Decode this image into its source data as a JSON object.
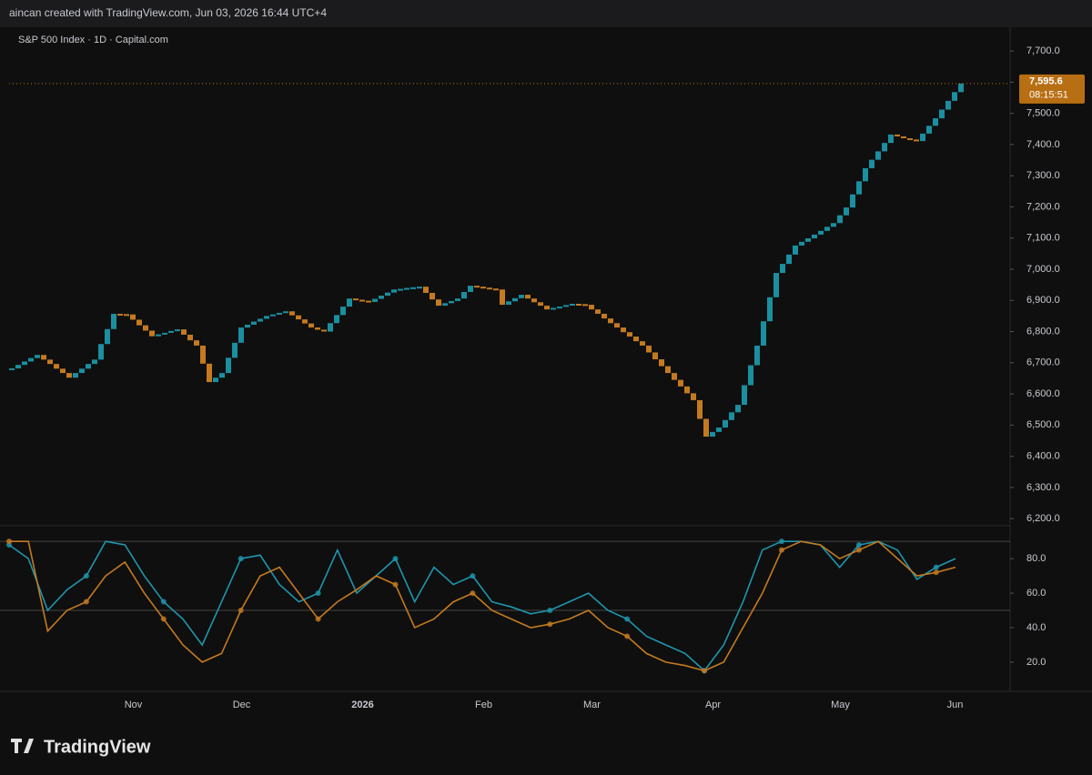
{
  "header": "aincan created with TradingView.com, Jun 03, 2026 16:44 UTC+4",
  "footer": "TradingView",
  "chart_data": [
    {
      "type": "step",
      "title": "S&P 500 Index · 1D · Capital.com",
      "up_color": "#1a8fa0",
      "down_color": "#c47a20",
      "categories": [
        null,
        null,
        null,
        null,
        null,
        null,
        null,
        null,
        null,
        null,
        null,
        null,
        null,
        null,
        null,
        null,
        null,
        null,
        null,
        "Nov",
        null,
        null,
        null,
        null,
        null,
        null,
        null,
        null,
        null,
        null,
        null,
        null,
        null,
        null,
        null,
        null,
        "Dec",
        null,
        null,
        null,
        null,
        null,
        null,
        null,
        null,
        null,
        null,
        null,
        null,
        null,
        null,
        null,
        null,
        null,
        null,
        "2026",
        null,
        null,
        null,
        null,
        null,
        null,
        null,
        null,
        null,
        null,
        null,
        null,
        null,
        null,
        null,
        null,
        null,
        null,
        "Feb",
        null,
        null,
        null,
        null,
        null,
        null,
        null,
        null,
        null,
        null,
        null,
        null,
        null,
        null,
        null,
        null,
        "Mar",
        null,
        null,
        null,
        null,
        null,
        null,
        null,
        null,
        null,
        null,
        null,
        null,
        null,
        null,
        null,
        null,
        null,
        null,
        "Apr",
        null,
        null,
        null,
        null,
        null,
        null,
        null,
        null,
        null,
        null,
        null,
        null,
        null,
        null,
        null,
        null,
        null,
        null,
        null,
        "May",
        null,
        null,
        null,
        null,
        null,
        null,
        null,
        null,
        null,
        null,
        null,
        null,
        null,
        null,
        null,
        null,
        null,
        "Jun",
        null
      ],
      "values": [
        6682,
        6693,
        6704,
        6715,
        6725,
        6710,
        6696,
        6681,
        6667,
        6652,
        6667,
        6681,
        6696,
        6710,
        6760,
        6808,
        6857,
        6856,
        6855,
        6838,
        6820,
        6803,
        6785,
        6791,
        6796,
        6802,
        6807,
        6790,
        6772,
        6755,
        6697,
        6638,
        6652,
        6667,
        6716,
        6764,
        6813,
        6822,
        6832,
        6841,
        6850,
        6855,
        6860,
        6865,
        6852,
        6839,
        6826,
        6813,
        6806,
        6800,
        6827,
        6853,
        6880,
        6906,
        6902,
        6899,
        6895,
        6905,
        6915,
        6925,
        6935,
        6937,
        6940,
        6942,
        6944,
        6924,
        6903,
        6883,
        6891,
        6898,
        6906,
        6927,
        6947,
        6944,
        6941,
        6938,
        6935,
        6886,
        6897,
        6907,
        6918,
        6906,
        6894,
        6883,
        6871,
        6876,
        6880,
        6885,
        6889,
        6888,
        6886,
        6871,
        6857,
        6842,
        6827,
        6813,
        6798,
        6784,
        6769,
        6755,
        6733,
        6711,
        6689,
        6667,
        6645,
        6624,
        6602,
        6580,
        6520,
        6463,
        6478,
        6492,
        6516,
        6541,
        6565,
        6628,
        6692,
        6755,
        6833,
        6910,
        6988,
        7017,
        7047,
        7076,
        7088,
        7099,
        7111,
        7123,
        7136,
        7148,
        7173,
        7198,
        7240,
        7282,
        7324,
        7351,
        7378,
        7405,
        7432,
        7426,
        7420,
        7416,
        7411,
        7435,
        7460,
        7484,
        7512,
        7540,
        7568,
        7595.6
      ],
      "last_price": {
        "value": 7595.6,
        "label": "7,595.6",
        "countdown": "08:15:51",
        "color": "#b86e12"
      },
      "ylim": [
        6180,
        7776
      ],
      "yticks": [
        {
          "value": 6200,
          "label": "6,200.0"
        },
        {
          "value": 6300,
          "label": "6,300.0"
        },
        {
          "value": 6400,
          "label": "6,400.0"
        },
        {
          "value": 6500,
          "label": "6,500.0"
        },
        {
          "value": 6600,
          "label": "6,600.0"
        },
        {
          "value": 6700,
          "label": "6,700.0"
        },
        {
          "value": 6800,
          "label": "6,800.0"
        },
        {
          "value": 6900,
          "label": "6,900.0"
        },
        {
          "value": 7000,
          "label": "7,000.0"
        },
        {
          "value": 7100,
          "label": "7,100.0"
        },
        {
          "value": 7200,
          "label": "7,200.0"
        },
        {
          "value": 7300,
          "label": "7,300.0"
        },
        {
          "value": 7400,
          "label": "7,400.0"
        },
        {
          "value": 7500,
          "label": "7,500.0"
        },
        {
          "value": 7600,
          "label": "7,600.0"
        },
        {
          "value": 7700,
          "label": "7,700.0"
        }
      ]
    },
    {
      "type": "line",
      "levels": [
        90,
        50
      ],
      "series": [
        {
          "color": "#1e96ad",
          "values": [
            88,
            80,
            50,
            62,
            70,
            90,
            88,
            70,
            55,
            45,
            30,
            55,
            80,
            82,
            65,
            55,
            60,
            85,
            60,
            70,
            80,
            55,
            75,
            65,
            70,
            55,
            52,
            48,
            50,
            55,
            60,
            50,
            45,
            35,
            30,
            25,
            15,
            30,
            55,
            85,
            90,
            90,
            88,
            75,
            88,
            90,
            85,
            68,
            75,
            80
          ]
        },
        {
          "color": "#c47a20",
          "values": [
            90,
            90,
            38,
            50,
            55,
            70,
            78,
            60,
            45,
            30,
            20,
            25,
            50,
            70,
            75,
            60,
            45,
            55,
            62,
            70,
            65,
            40,
            45,
            55,
            60,
            50,
            45,
            40,
            42,
            45,
            50,
            40,
            35,
            25,
            20,
            18,
            15,
            20,
            40,
            60,
            85,
            90,
            88,
            80,
            85,
            90,
            80,
            70,
            72,
            75
          ]
        }
      ],
      "ylim": [
        11,
        98
      ],
      "yticks": [
        {
          "value": 20,
          "label": "20.0"
        },
        {
          "value": 40,
          "label": "40.0"
        },
        {
          "value": 60,
          "label": "60.0"
        },
        {
          "value": 80,
          "label": "80.0"
        }
      ]
    }
  ]
}
